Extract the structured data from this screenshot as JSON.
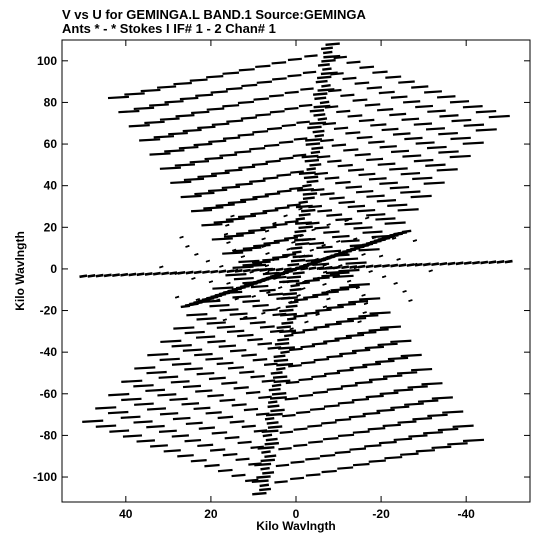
{
  "chart_data": {
    "type": "scatter",
    "title": "V vs U for GEMINGA.L BAND.1   Source:GEMINGA",
    "subtitle": "Ants * - *     Stokes I   IF# 1 - 2   Chan# 1",
    "xlabel": "Kilo Wavlngth",
    "ylabel": "Kilo Wavlngth",
    "xlim": [
      55,
      -55
    ],
    "ylim": [
      -112,
      110
    ],
    "x_reversed": true,
    "xticks": [
      40,
      20,
      0,
      -20,
      -40
    ],
    "yticks": [
      -100,
      -80,
      -60,
      -40,
      -20,
      0,
      20,
      40,
      60,
      80,
      100
    ],
    "xtick_labels": [
      "40",
      "20",
      "0",
      "-20",
      "-40"
    ],
    "ytick_labels": [
      "-100",
      "-80",
      "-60",
      "-40",
      "-20",
      "0",
      "20",
      "40",
      "60",
      "80",
      "100"
    ],
    "grid": false,
    "marker": "short dashes (uv-track segments), black",
    "color": "#000000",
    "description": "uv-coverage of an east-west/star-shaped array: point-symmetric tracks forming a six-armed star centered on (0,0), with a dense central band running from about (-8,108) to (8,-108)"
  }
}
